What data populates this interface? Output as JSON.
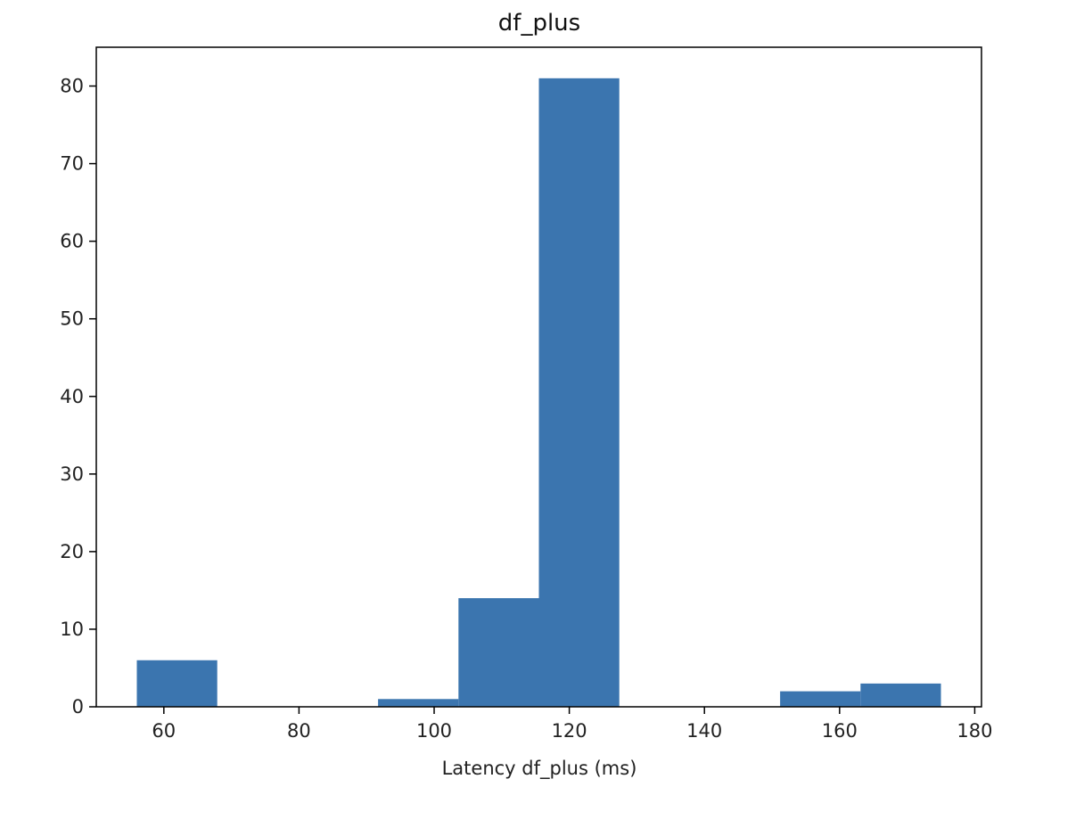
{
  "chart_data": {
    "type": "bar",
    "title": "df_plus",
    "xlabel": "Latency df_plus (ms)",
    "ylabel": "",
    "xlim": [
      50,
      181
    ],
    "ylim": [
      0,
      85
    ],
    "bin_edges": [
      56,
      67.9,
      79.8,
      91.7,
      103.6,
      115.5,
      127.4,
      139.3,
      151.2,
      163.1,
      175
    ],
    "values": [
      6,
      0,
      0,
      1,
      14,
      81,
      0,
      0,
      2,
      3
    ],
    "x_ticks": [
      60,
      80,
      100,
      120,
      140,
      160,
      180
    ],
    "y_ticks": [
      0,
      10,
      20,
      30,
      40,
      50,
      60,
      70,
      80
    ],
    "bar_color": "#3b75af",
    "grid": false,
    "legend": "none"
  }
}
